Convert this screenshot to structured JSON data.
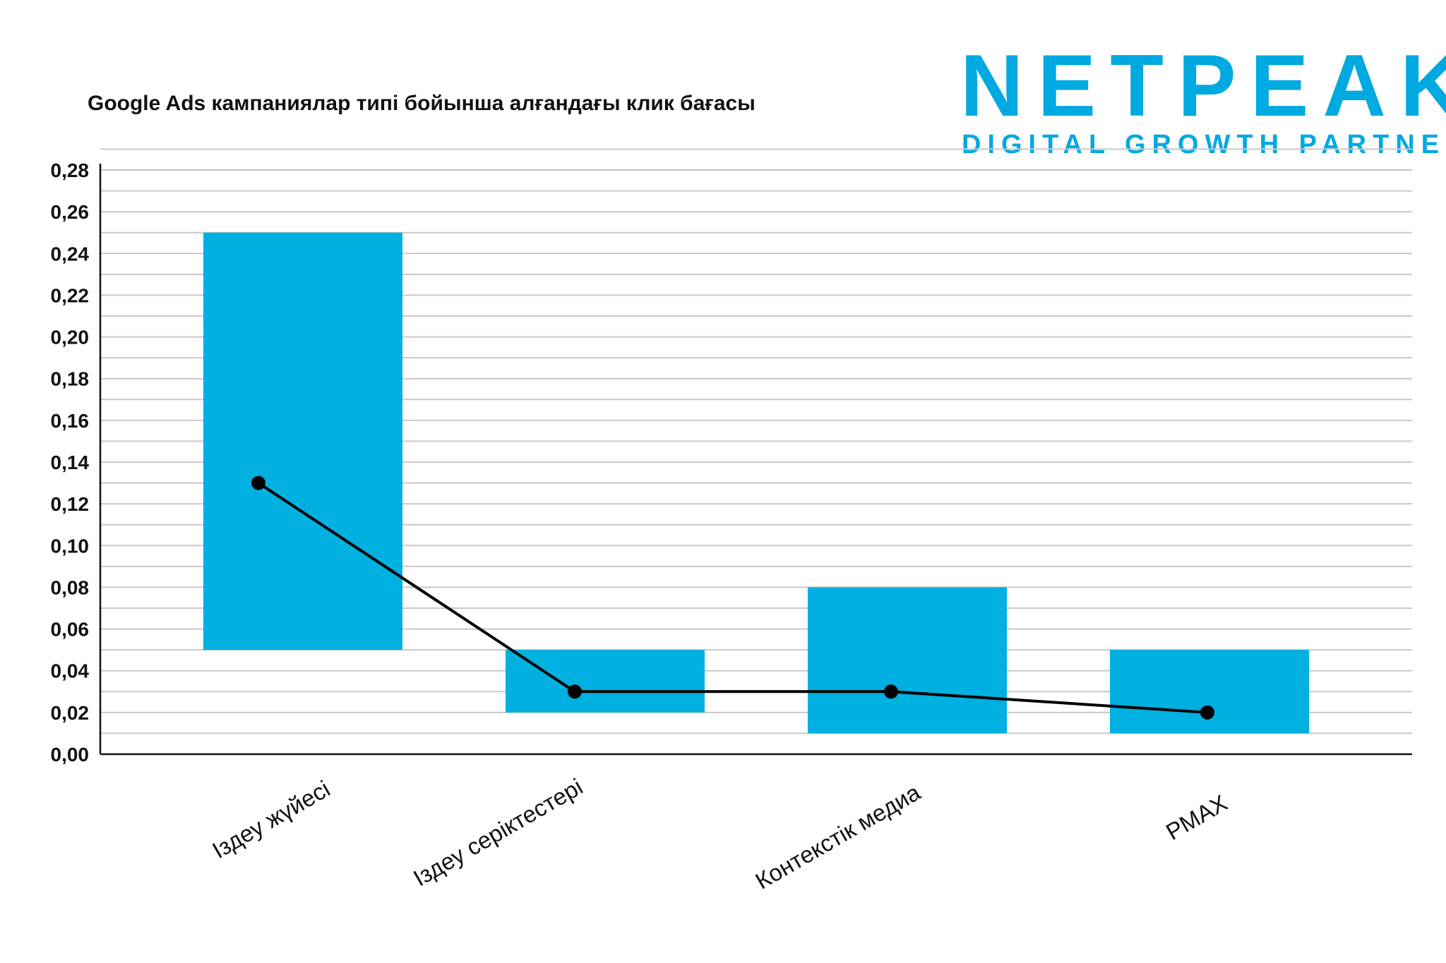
{
  "title": "Google Ads кампаниялар типі бойынша алғандағы клик бағасы",
  "logo": {
    "wordmark": "NETPEAK",
    "tagline": "DIGITAL GROWTH PARTNER",
    "color": "#00a9e0"
  },
  "colors": {
    "bar": "#00b0e0",
    "line": "#000000",
    "grid": "#c8c8c8",
    "axis": "#111111"
  },
  "chart_data": {
    "type": "bar",
    "title": "Google Ads кампаниялар типі бойынша алғандағы клик бағасы",
    "categories": [
      "Іздеу жүйесі",
      "Іздеу серіктестері",
      "Контекстік медиа",
      "PMAX"
    ],
    "series": [
      {
        "kind": "floating-bar",
        "low": [
          0.05,
          0.02,
          0.01,
          0.01
        ],
        "high": [
          0.25,
          0.05,
          0.08,
          0.05
        ]
      },
      {
        "kind": "line",
        "values": [
          0.13,
          0.03,
          0.03,
          0.02
        ]
      }
    ],
    "ylim": [
      0,
      0.28
    ],
    "yticks": [
      "0,00",
      "0,02",
      "0,04",
      "0,06",
      "0,08",
      "0,10",
      "0,12",
      "0,14",
      "0,16",
      "0,18",
      "0,20",
      "0,22",
      "0,24",
      "0,26",
      "0,28"
    ],
    "grid": true,
    "legend": "none"
  }
}
